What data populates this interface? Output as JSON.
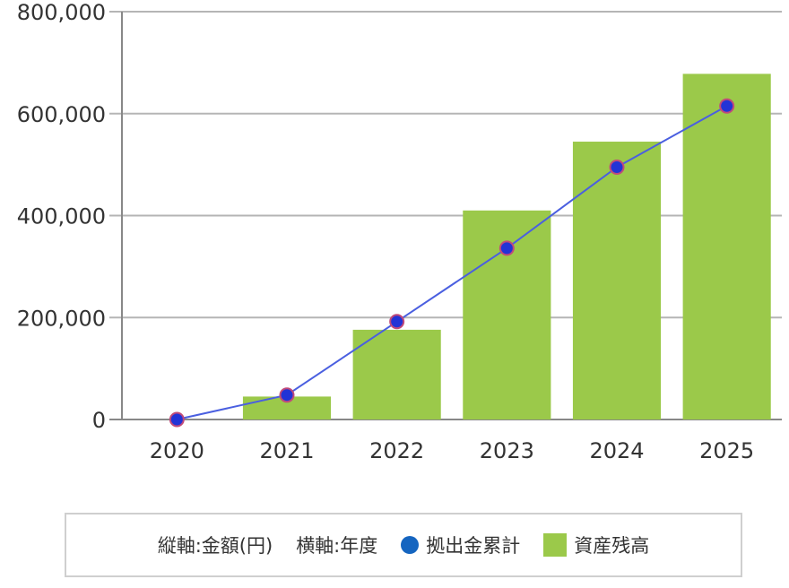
{
  "chart_data": {
    "type": "bar",
    "categories": [
      "2020",
      "2021",
      "2022",
      "2023",
      "2024",
      "2025"
    ],
    "series": [
      {
        "name": "資産残高",
        "type": "bar",
        "color": "#9BC94A",
        "values": [
          0,
          45000,
          176000,
          410000,
          545000,
          678000
        ]
      },
      {
        "name": "拠出金累計",
        "type": "line",
        "color": "#2233D6",
        "values": [
          0,
          48000,
          192000,
          336000,
          495000,
          615000
        ]
      }
    ],
    "ylim": [
      0,
      800000
    ],
    "y_ticks": [
      0,
      200000,
      400000,
      600000,
      800000
    ],
    "y_tick_labels": [
      "0",
      "200,000",
      "400,000",
      "600,000",
      "800,000"
    ],
    "grid": true
  },
  "legend": {
    "vertical_axis_note": "縦軸:金額(円)",
    "horizontal_axis_note": "横軸:年度",
    "line_series_label": "拠出金累計",
    "bar_series_label": "資産残高",
    "line_marker_color": "#1565C0",
    "bar_color": "#9BC94A"
  }
}
